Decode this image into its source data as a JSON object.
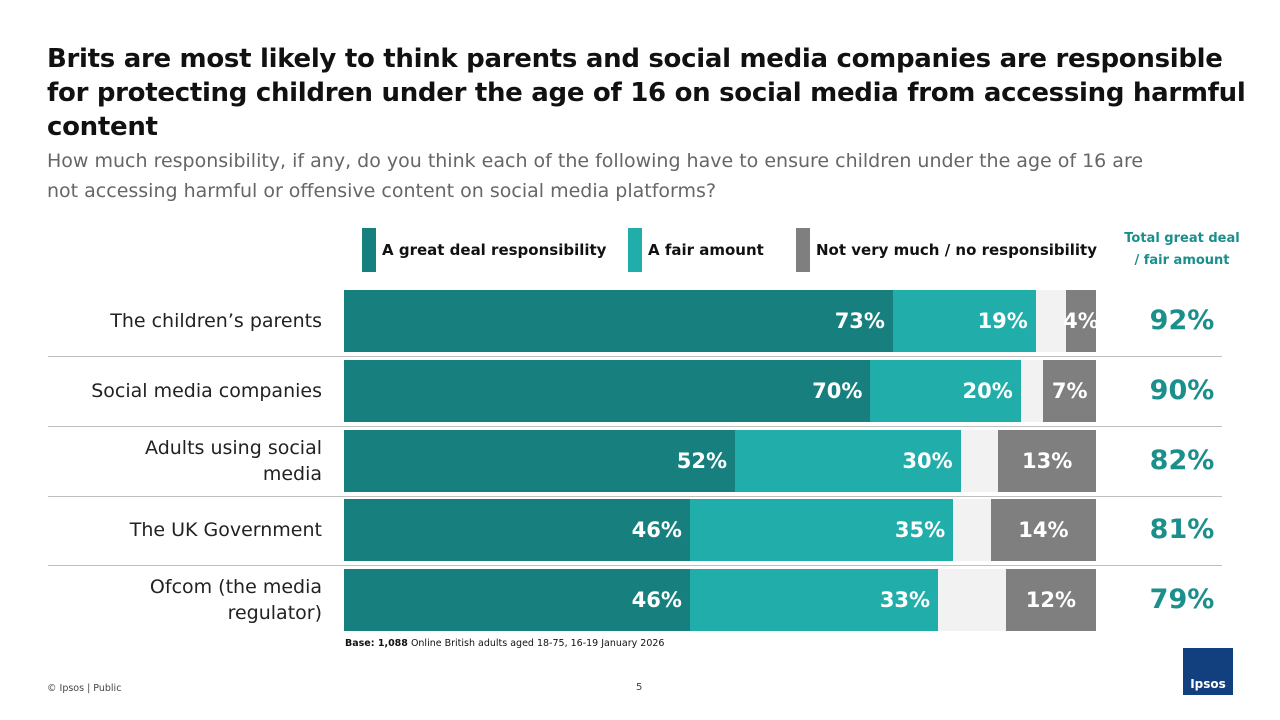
{
  "chart_data": {
    "type": "stacked-bar",
    "title": "Brits are most likely to think parents and social media companies are responsible for protecting children under the age of 16 on social media from accessing harmful content",
    "subtitle": "How much responsibility, if any, do you think each of the following have to ensure children under the age of 16  are not accessing harmful or offensive content on social media platforms?",
    "categories": [
      "The children’s parents",
      "Social media companies",
      "Adults using social media",
      "The UK Government",
      "Ofcom (the media regulator)"
    ],
    "xlim": [
      0,
      100
    ],
    "series": [
      {
        "name": "A great deal responsibility",
        "color": "#17807e",
        "values": [
          73,
          70,
          52,
          46,
          46
        ],
        "value_labels": [
          "73%",
          "70%",
          "52%",
          "46%",
          "46%"
        ]
      },
      {
        "name": "A fair amount",
        "color": "#21aeab",
        "values": [
          19,
          20,
          30,
          35,
          33
        ],
        "value_labels": [
          "19%",
          "20%",
          "30%",
          "35%",
          "33%"
        ]
      },
      {
        "name": "Not very much / no responsibility",
        "color": "#7f7f7f",
        "values": [
          4,
          7,
          13,
          14,
          12
        ],
        "value_labels": [
          "4%",
          "7%",
          "13%",
          "14%",
          "12%"
        ]
      }
    ],
    "totals": {
      "name": "Total great deal / fair amount",
      "color": "#1a8f8c",
      "values": [
        92,
        90,
        82,
        81,
        79
      ],
      "value_labels": [
        "92%",
        "90%",
        "82%",
        "81%",
        "79%"
      ]
    },
    "base_label": "Base: 1,088",
    "base_text": "Online British adults aged 18-75, 16-19 January 2026",
    "footer": "© Ipsos | Public",
    "page_number": "5",
    "logo": "Ipsos"
  }
}
